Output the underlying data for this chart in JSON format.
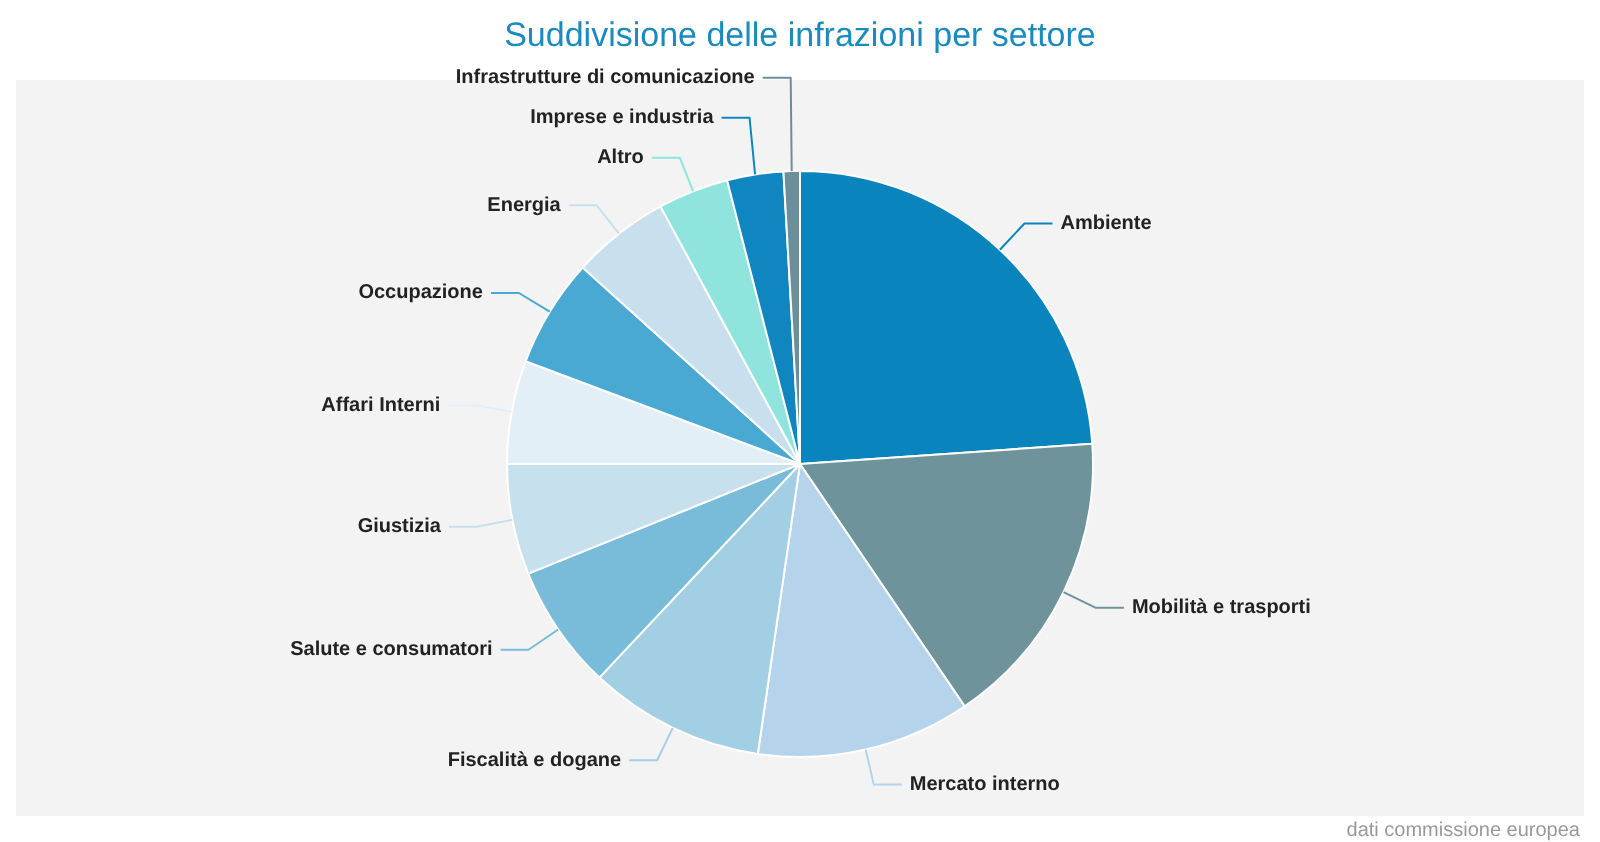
{
  "chart_data": {
    "type": "pie",
    "title": "Suddivisione delle infrazioni per settore",
    "categories": [
      "Ambiente",
      "Mobilità e trasporti",
      "Mercato interno",
      "Fiscalità e dogane",
      "Salute e consumatori",
      "Giustizia",
      "Affari Interni",
      "Occupazione",
      "Energia",
      "Altro",
      "Imprese e industria",
      "Infrastrutture di comunicazione"
    ],
    "values": [
      23.9,
      16.6,
      11.8,
      9.7,
      6.9,
      6.1,
      5.7,
      6.0,
      5.4,
      3.9,
      3.1,
      0.9
    ],
    "colors": [
      "#0a84bd",
      "#6f939b",
      "#b5d3ea",
      "#a2cfe3",
      "#78bcd9",
      "#c7e0ee",
      "#e3eff6",
      "#4aa9d3",
      "#c8e0ee",
      "#8fe5de",
      "#0f86c0",
      "#6b8f99"
    ],
    "legend": false,
    "annotations": [
      "dati commissione europea"
    ]
  }
}
